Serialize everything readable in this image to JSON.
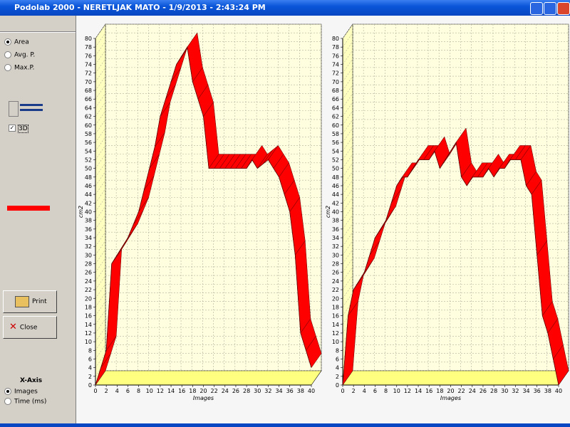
{
  "window": {
    "title": "Podolab 2000 - NERETLJAK MATO - 1/9/2013 - 2:43:24 PM"
  },
  "sidebar": {
    "mode_options": [
      "Area",
      "Avg. P.",
      "Max.P."
    ],
    "three_d": "3D",
    "print": "Print",
    "close": "Close",
    "x_axis": {
      "label": "X-Axis",
      "options": [
        "Images",
        "Time (ms)"
      ]
    }
  },
  "chart_data": [
    {
      "type": "line",
      "xlabel": "Images",
      "ylabel": "cm2",
      "color": "#ff0000",
      "x": [
        0,
        1,
        2,
        3,
        4,
        5,
        6,
        7,
        8,
        9,
        10,
        11,
        12,
        13,
        14,
        15,
        16,
        17,
        18,
        19,
        20,
        21,
        22,
        23,
        24,
        25,
        26,
        27,
        28,
        29,
        30,
        31,
        32,
        33,
        34,
        35,
        36,
        37,
        38,
        39,
        40
      ],
      "values": [
        0,
        4,
        8,
        28,
        30,
        32,
        34,
        37,
        40,
        45,
        50,
        55,
        62,
        66,
        70,
        74,
        76,
        78,
        70,
        66,
        62,
        50,
        50,
        50,
        50,
        50,
        50,
        50,
        50,
        52,
        50,
        51,
        52,
        50,
        48,
        44,
        40,
        30,
        12,
        8,
        4
      ],
      "xlim": [
        0,
        40
      ],
      "ylim": [
        0,
        80
      ],
      "xticks": [
        0,
        2,
        4,
        6,
        8,
        10,
        12,
        14,
        16,
        18,
        20,
        22,
        24,
        26,
        28,
        30,
        32,
        34,
        36,
        38,
        40
      ],
      "yticks": [
        0,
        2,
        4,
        6,
        8,
        10,
        12,
        14,
        16,
        18,
        20,
        22,
        24,
        26,
        28,
        30,
        32,
        34,
        36,
        38,
        40,
        42,
        44,
        46,
        48,
        50,
        52,
        54,
        56,
        58,
        60,
        62,
        64,
        66,
        68,
        70,
        72,
        74,
        76,
        78,
        80
      ],
      "grid": true
    },
    {
      "type": "line",
      "xlabel": "Images",
      "ylabel": "cm2",
      "color": "#ff0000",
      "x": [
        0,
        1,
        2,
        3,
        4,
        5,
        6,
        7,
        8,
        9,
        10,
        11,
        12,
        13,
        14,
        15,
        16,
        17,
        18,
        19,
        20,
        21,
        22,
        23,
        24,
        25,
        26,
        27,
        28,
        29,
        30,
        31,
        32,
        33,
        34,
        35,
        36,
        37,
        38,
        39,
        40
      ],
      "values": [
        0,
        16,
        22,
        24,
        26,
        30,
        34,
        36,
        38,
        42,
        46,
        48,
        48,
        50,
        52,
        52,
        52,
        54,
        50,
        52,
        54,
        56,
        48,
        46,
        48,
        48,
        48,
        50,
        48,
        50,
        50,
        52,
        52,
        52,
        46,
        44,
        30,
        16,
        12,
        6,
        0
      ],
      "xlim": [
        0,
        40
      ],
      "ylim": [
        0,
        80
      ],
      "xticks": [
        0,
        2,
        4,
        6,
        8,
        10,
        12,
        14,
        16,
        18,
        20,
        22,
        24,
        26,
        28,
        30,
        32,
        34,
        36,
        38,
        40
      ],
      "yticks": [
        0,
        2,
        4,
        6,
        8,
        10,
        12,
        14,
        16,
        18,
        20,
        22,
        24,
        26,
        28,
        30,
        32,
        34,
        36,
        38,
        40,
        42,
        44,
        46,
        48,
        50,
        52,
        54,
        56,
        58,
        60,
        62,
        64,
        66,
        68,
        70,
        72,
        74,
        76,
        78,
        80
      ],
      "grid": true
    }
  ]
}
